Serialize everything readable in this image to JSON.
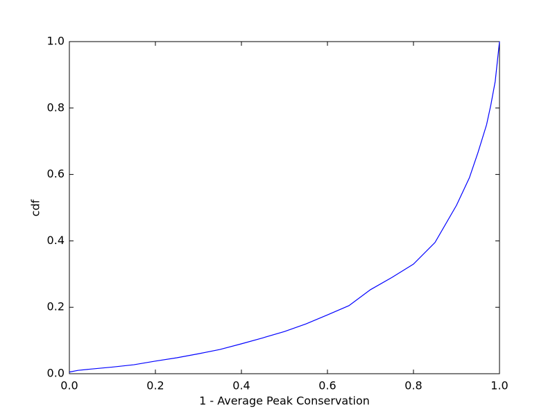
{
  "chart_data": {
    "type": "line",
    "xlabel": "1 - Average Peak Conservation",
    "ylabel": "cdf",
    "x": [
      0,
      0.02,
      0.05,
      0.1,
      0.15,
      0.2,
      0.25,
      0.3,
      0.35,
      0.4,
      0.45,
      0.5,
      0.55,
      0.6,
      0.65,
      0.7,
      0.75,
      0.8,
      0.85,
      0.9,
      0.93,
      0.95,
      0.97,
      0.98,
      0.99,
      1.0
    ],
    "series": [
      {
        "color": "#0000ff",
        "values": [
          0.005,
          0.01,
          0.014,
          0.02,
          0.027,
          0.038,
          0.048,
          0.06,
          0.073,
          0.09,
          0.108,
          0.127,
          0.15,
          0.177,
          0.205,
          0.253,
          0.29,
          0.33,
          0.395,
          0.507,
          0.59,
          0.666,
          0.75,
          0.81,
          0.88,
          1.0
        ]
      }
    ],
    "xlim": [
      0,
      1
    ],
    "ylim": [
      0,
      1
    ],
    "xticks": [
      {
        "value": 0,
        "label": "0.0"
      },
      0.2,
      0.4,
      0.6,
      0.8,
      {
        "value": 1,
        "label": "1.0"
      }
    ],
    "yticks": [
      {
        "value": 0,
        "label": "0.0"
      },
      0.2,
      0.4,
      0.6,
      0.8,
      {
        "value": 1,
        "label": "1.0"
      }
    ],
    "grid": false
  }
}
